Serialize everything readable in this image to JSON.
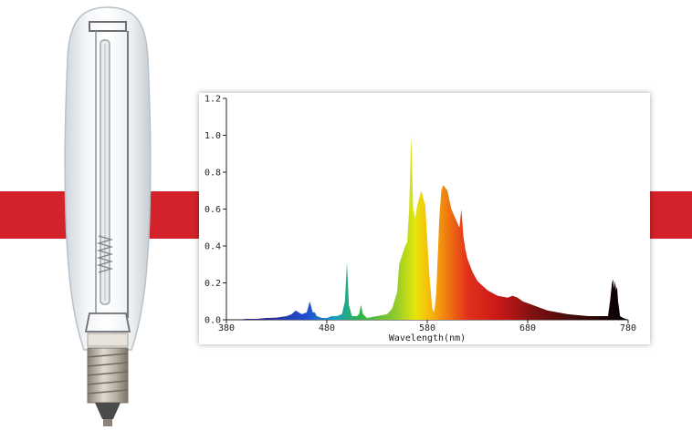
{
  "chart_data": {
    "type": "area",
    "title": "",
    "xlabel": "Wavelength(nm)",
    "ylabel": "",
    "xlim": [
      380,
      780
    ],
    "ylim": [
      0,
      1.2
    ],
    "x_ticks": [
      "380",
      "480",
      "580",
      "680",
      "780"
    ],
    "y_ticks": [
      "0.0",
      "0.2",
      "0.4",
      "0.6",
      "0.8",
      "1.0",
      "1.2"
    ],
    "grid": false,
    "fill": "wavelength-colored",
    "series": [
      {
        "x": [
          380,
          390,
          400,
          410,
          420,
          430,
          440,
          445,
          449,
          452,
          455,
          460,
          463,
          466,
          468,
          470,
          475,
          480,
          485,
          490,
          495,
          498,
          500,
          502,
          505,
          510,
          512,
          514,
          516,
          520,
          530,
          540,
          545,
          550,
          552,
          555,
          558,
          560,
          562,
          564,
          566,
          568,
          570,
          574,
          578,
          582,
          585,
          587,
          589,
          592,
          594,
          596,
          600,
          604,
          608,
          612,
          614,
          616,
          618,
          620,
          625,
          630,
          640,
          650,
          660,
          665,
          670,
          675,
          680,
          690,
          700,
          720,
          740,
          760,
          762,
          764,
          765,
          766,
          767,
          768,
          769,
          770,
          772,
          775,
          780
        ],
        "y": [
          0.0,
          0.0,
          0.005,
          0.005,
          0.01,
          0.012,
          0.02,
          0.03,
          0.05,
          0.04,
          0.03,
          0.04,
          0.1,
          0.04,
          0.04,
          0.02,
          0.01,
          0.01,
          0.02,
          0.02,
          0.03,
          0.1,
          0.31,
          0.08,
          0.02,
          0.02,
          0.03,
          0.08,
          0.03,
          0.01,
          0.02,
          0.03,
          0.06,
          0.15,
          0.3,
          0.35,
          0.4,
          0.42,
          0.6,
          1.0,
          0.6,
          0.55,
          0.62,
          0.7,
          0.62,
          0.25,
          0.06,
          0.04,
          0.15,
          0.55,
          0.7,
          0.73,
          0.7,
          0.6,
          0.55,
          0.5,
          0.6,
          0.45,
          0.38,
          0.33,
          0.26,
          0.21,
          0.16,
          0.13,
          0.12,
          0.13,
          0.12,
          0.1,
          0.09,
          0.07,
          0.05,
          0.03,
          0.02,
          0.02,
          0.1,
          0.2,
          0.22,
          0.17,
          0.21,
          0.16,
          0.18,
          0.1,
          0.02,
          0.01,
          0.0
        ]
      }
    ]
  }
}
